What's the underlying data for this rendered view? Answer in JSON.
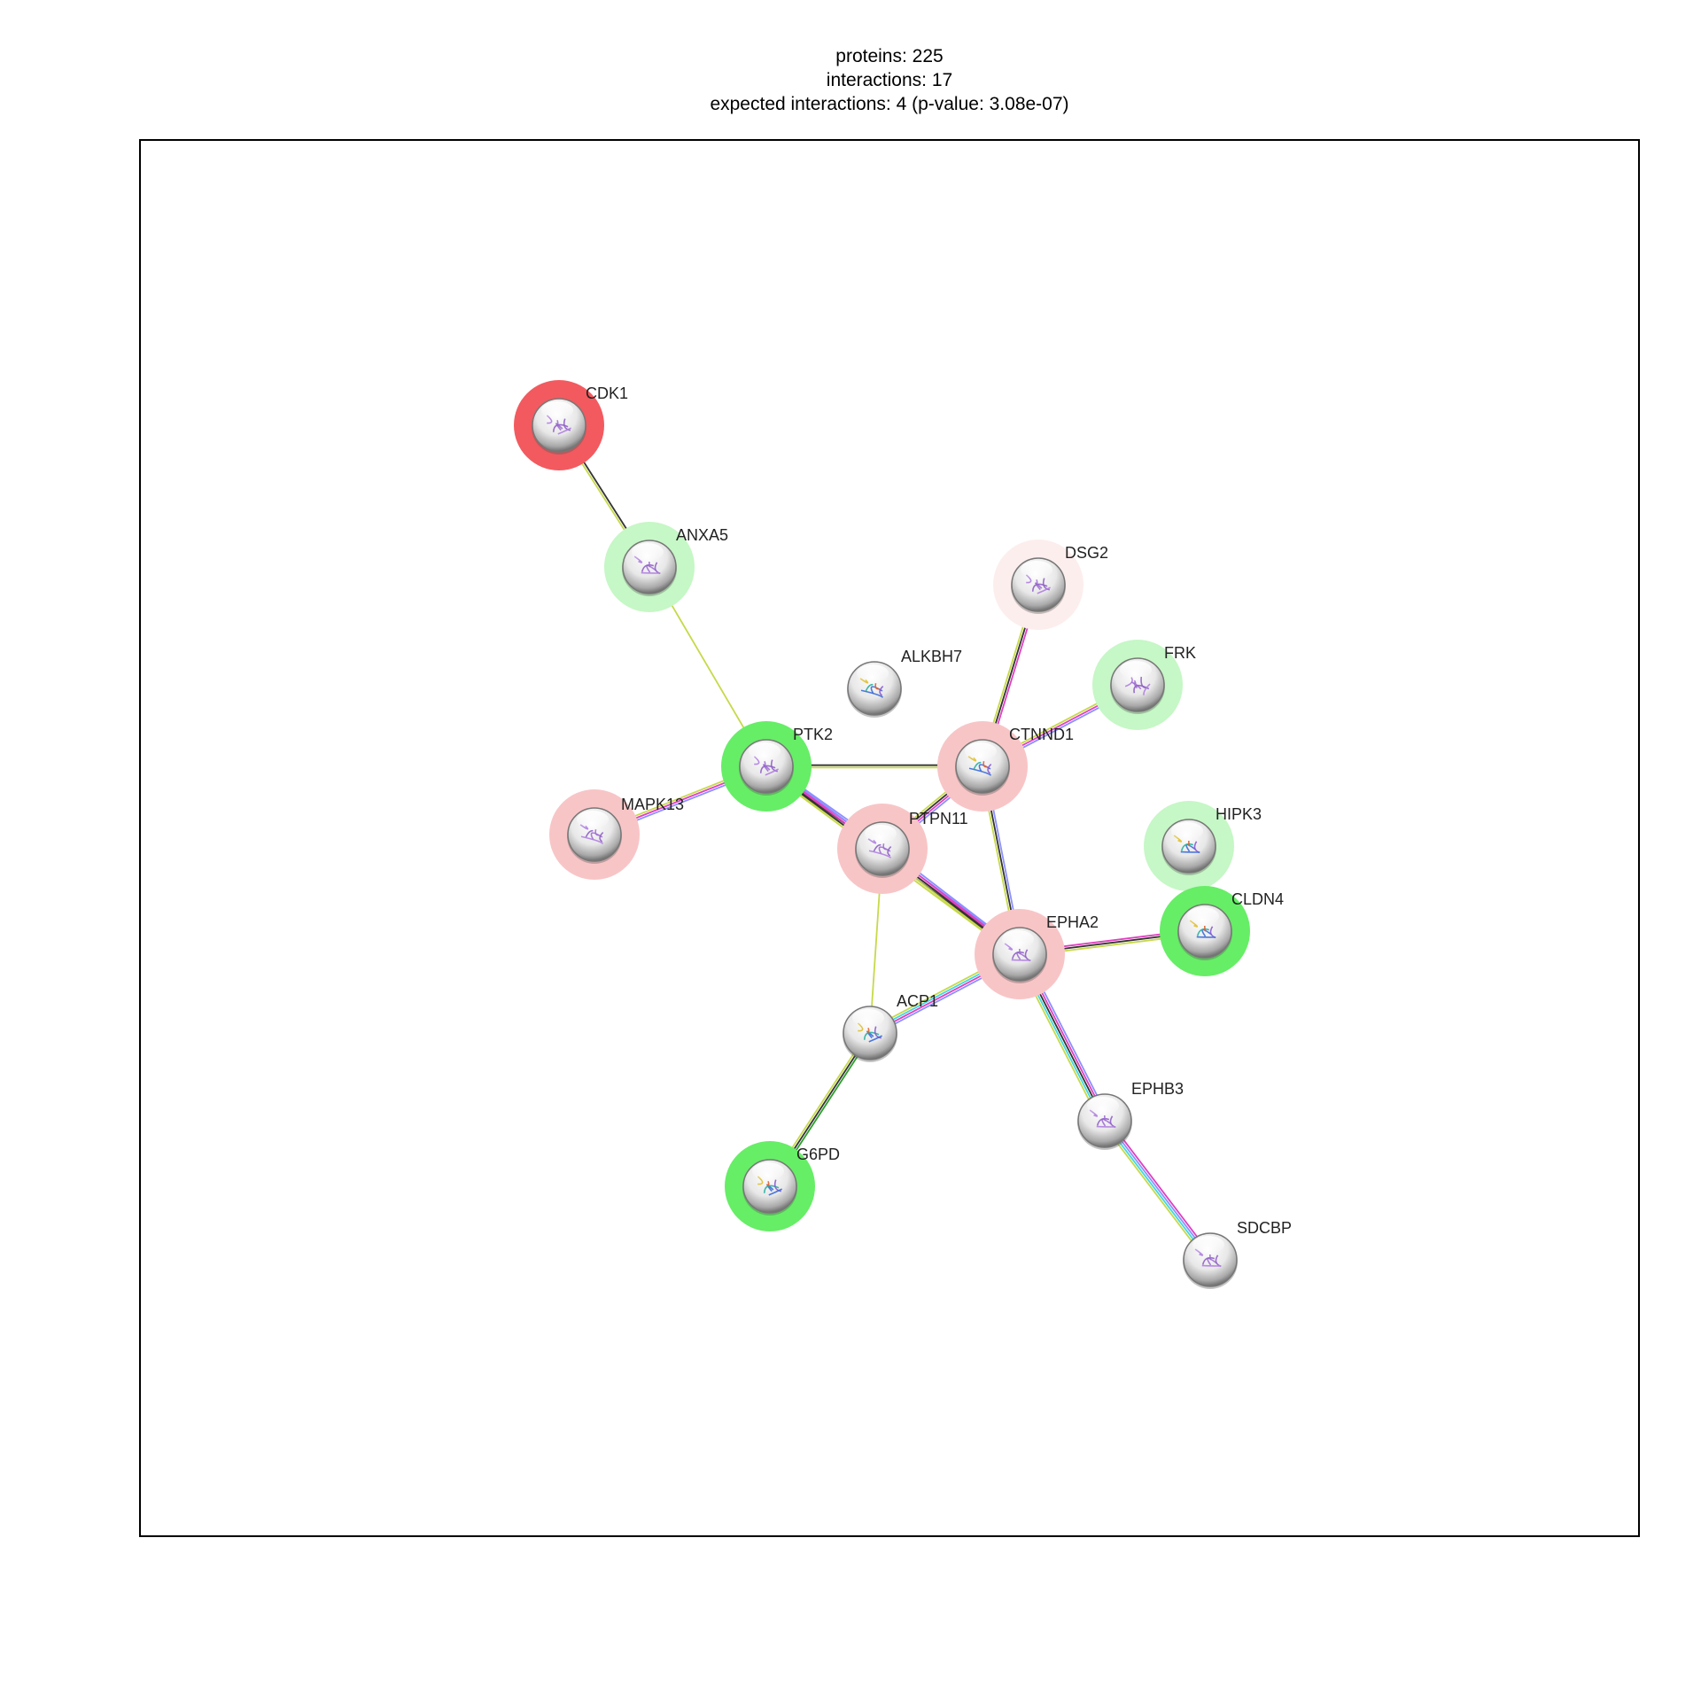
{
  "header": {
    "proteins": "proteins: 225",
    "interactions": "interactions: 17",
    "expected": "expected interactions: 4 (p-value: 3.08e-07)"
  },
  "colors": {
    "halo_red_strong": "#f25a5f",
    "halo_red_light": "#f8c5c7",
    "halo_red_faint": "#fdeeee",
    "halo_green_strong": "#66ee66",
    "halo_green_light": "#c6f7c6",
    "edge_black": "#333333",
    "edge_yellow": "#c7d94a",
    "edge_pink": "#e040c0",
    "edge_blue": "#8c90ff",
    "edge_cyan": "#40d8e0",
    "edge_green": "#2aa02a"
  },
  "nodes": [
    {
      "id": "CDK1",
      "label": "CDK1",
      "halo": "red-strong",
      "structure": "purple"
    },
    {
      "id": "ANXA5",
      "label": "ANXA5",
      "halo": "green-light",
      "structure": "purple"
    },
    {
      "id": "DSG2",
      "label": "DSG2",
      "halo": "red-faint",
      "structure": "purple"
    },
    {
      "id": "ALKBH7",
      "label": "ALKBH7",
      "halo": "none",
      "structure": "rainbow"
    },
    {
      "id": "FRK",
      "label": "FRK",
      "halo": "green-light",
      "structure": "purple"
    },
    {
      "id": "PTK2",
      "label": "PTK2",
      "halo": "green-strong",
      "structure": "purple"
    },
    {
      "id": "CTNND1",
      "label": "CTNND1",
      "halo": "red-light",
      "structure": "rainbow"
    },
    {
      "id": "MAPK13",
      "label": "MAPK13",
      "halo": "red-light",
      "structure": "purple"
    },
    {
      "id": "PTPN11",
      "label": "PTPN11",
      "halo": "red-light",
      "structure": "purple"
    },
    {
      "id": "HIPK3",
      "label": "HIPK3",
      "halo": "green-light",
      "structure": "rainbow"
    },
    {
      "id": "CLDN4",
      "label": "CLDN4",
      "halo": "green-strong",
      "structure": "rainbow"
    },
    {
      "id": "EPHA2",
      "label": "EPHA2",
      "halo": "red-light",
      "structure": "purple"
    },
    {
      "id": "ACP1",
      "label": "ACP1",
      "halo": "none",
      "structure": "rainbow"
    },
    {
      "id": "EPHB3",
      "label": "EPHB3",
      "halo": "none",
      "structure": "purple"
    },
    {
      "id": "G6PD",
      "label": "G6PD",
      "halo": "green-strong",
      "structure": "rainbow"
    },
    {
      "id": "SDCBP",
      "label": "SDCBP",
      "halo": "none",
      "structure": "purple"
    }
  ],
  "edges": [
    {
      "source": "CDK1",
      "target": "ANXA5",
      "evidence": [
        "black",
        "yellow"
      ]
    },
    {
      "source": "ANXA5",
      "target": "PTK2",
      "evidence": [
        "yellow"
      ]
    },
    {
      "source": "PTK2",
      "target": "CTNND1",
      "evidence": [
        "black",
        "yellow"
      ]
    },
    {
      "source": "PTK2",
      "target": "MAPK13",
      "evidence": [
        "blue",
        "pink",
        "yellow"
      ]
    },
    {
      "source": "PTK2",
      "target": "PTPN11",
      "evidence": [
        "blue",
        "pink",
        "black",
        "yellow"
      ]
    },
    {
      "source": "PTK2",
      "target": "EPHA2",
      "evidence": [
        "blue",
        "pink",
        "black",
        "yellow"
      ]
    },
    {
      "source": "DSG2",
      "target": "CTNND1",
      "evidence": [
        "pink",
        "black",
        "yellow"
      ]
    },
    {
      "source": "FRK",
      "target": "CTNND1",
      "evidence": [
        "blue",
        "pink",
        "yellow"
      ]
    },
    {
      "source": "CTNND1",
      "target": "PTPN11",
      "evidence": [
        "blue",
        "pink",
        "black",
        "yellow"
      ]
    },
    {
      "source": "CTNND1",
      "target": "EPHA2",
      "evidence": [
        "blue",
        "black",
        "yellow"
      ]
    },
    {
      "source": "PTPN11",
      "target": "EPHA2",
      "evidence": [
        "blue",
        "pink",
        "black",
        "yellow"
      ]
    },
    {
      "source": "PTPN11",
      "target": "ACP1",
      "evidence": [
        "yellow"
      ]
    },
    {
      "source": "EPHA2",
      "target": "CLDN4",
      "evidence": [
        "pink",
        "black",
        "yellow"
      ]
    },
    {
      "source": "EPHA2",
      "target": "ACP1",
      "evidence": [
        "blue",
        "pink",
        "cyan",
        "yellow"
      ]
    },
    {
      "source": "EPHA2",
      "target": "EPHB3",
      "evidence": [
        "blue",
        "pink",
        "black",
        "cyan",
        "yellow"
      ]
    },
    {
      "source": "ACP1",
      "target": "G6PD",
      "evidence": [
        "green",
        "black",
        "yellow"
      ]
    },
    {
      "source": "EPHB3",
      "target": "SDCBP",
      "evidence": [
        "pink",
        "blue",
        "cyan",
        "yellow"
      ]
    }
  ]
}
